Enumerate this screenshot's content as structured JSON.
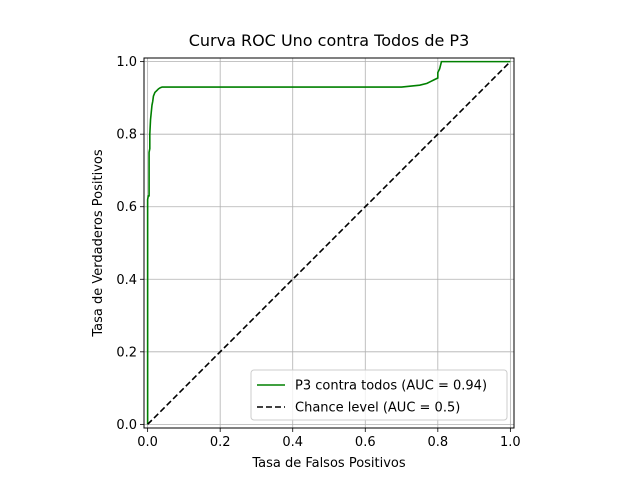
{
  "chart_data": {
    "type": "line",
    "title": "Curva ROC Uno contra Todos de P3",
    "xlabel": "Tasa de Falsos Positivos",
    "ylabel": "Tasa de Verdaderos Positivos",
    "xlim": [
      -0.01,
      1.01
    ],
    "ylim": [
      -0.01,
      1.01
    ],
    "grid": true,
    "legend_position": "lower-right",
    "xticks": [
      0.0,
      0.2,
      0.4,
      0.6,
      0.8,
      1.0
    ],
    "xtick_labels": [
      "0.0",
      "0.2",
      "0.4",
      "0.6",
      "0.8",
      "1.0"
    ],
    "yticks": [
      0.0,
      0.2,
      0.4,
      0.6,
      0.8,
      1.0
    ],
    "ytick_labels": [
      "0.0",
      "0.2",
      "0.4",
      "0.6",
      "0.8",
      "1.0"
    ],
    "series": [
      {
        "name": "P3 contra todos (AUC = 0.94)",
        "color": "#008000",
        "dash": "solid",
        "x": [
          0.0,
          0.0,
          0.002,
          0.004,
          0.004,
          0.006,
          0.006,
          0.008,
          0.01,
          0.012,
          0.014,
          0.016,
          0.018,
          0.02,
          0.025,
          0.03,
          0.035,
          0.04,
          0.1,
          0.2,
          0.3,
          0.4,
          0.5,
          0.6,
          0.7,
          0.72,
          0.75,
          0.77,
          0.78,
          0.79,
          0.8,
          0.8,
          0.805,
          0.81,
          1.0
        ],
        "y": [
          0.0,
          0.62,
          0.63,
          0.63,
          0.75,
          0.76,
          0.8,
          0.84,
          0.86,
          0.88,
          0.89,
          0.905,
          0.91,
          0.915,
          0.92,
          0.925,
          0.928,
          0.93,
          0.93,
          0.93,
          0.93,
          0.93,
          0.93,
          0.93,
          0.93,
          0.932,
          0.935,
          0.94,
          0.945,
          0.95,
          0.955,
          0.97,
          0.98,
          1.0,
          1.0
        ]
      },
      {
        "name": "Chance level (AUC = 0.5)",
        "color": "#000000",
        "dash": "dashed",
        "x": [
          0.0,
          1.0
        ],
        "y": [
          0.0,
          1.0
        ]
      }
    ]
  }
}
